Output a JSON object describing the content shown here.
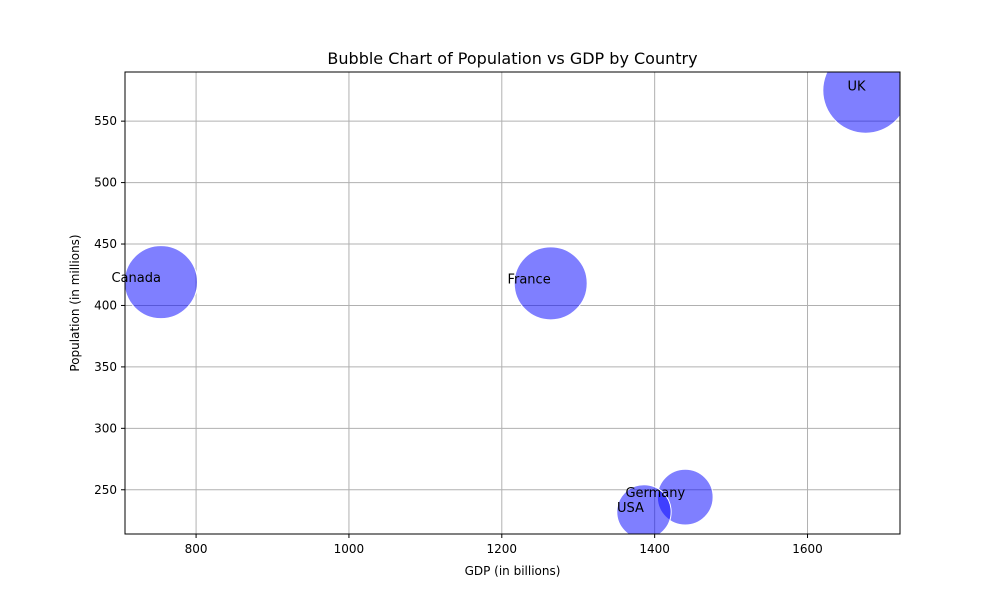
{
  "chart_data": {
    "type": "scatter",
    "title": "Bubble Chart of Population vs GDP by Country",
    "xlabel": "GDP (in billions)",
    "ylabel": "Population (in millions)",
    "xlim": [
      707,
      1721
    ],
    "ylim": [
      214,
      590
    ],
    "xticks": [
      800,
      1000,
      1200,
      1400,
      1600
    ],
    "yticks": [
      250,
      300,
      350,
      400,
      450,
      500,
      550
    ],
    "grid": true,
    "bubble_color": "#0000ff",
    "bubble_opacity": 0.5,
    "points": [
      {
        "label": "Canada",
        "x": 754,
        "y": 419,
        "size": 419
      },
      {
        "label": "France",
        "x": 1264,
        "y": 418,
        "size": 418
      },
      {
        "label": "UK",
        "x": 1676,
        "y": 575,
        "size": 575
      },
      {
        "label": "Germany",
        "x": 1440,
        "y": 244,
        "size": 244
      },
      {
        "label": "USA",
        "x": 1386,
        "y": 232,
        "size": 232
      }
    ]
  }
}
